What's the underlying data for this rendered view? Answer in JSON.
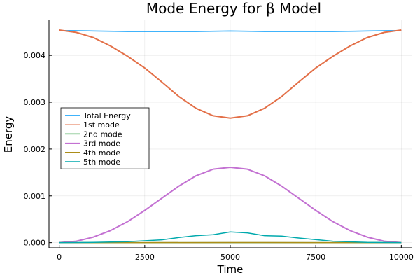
{
  "chart_data": {
    "type": "line",
    "title": "Mode Energy for β Model",
    "xlabel": "Time",
    "ylabel": "Energy",
    "xlim": [
      -300,
      10300
    ],
    "ylim": [
      -0.00011,
      0.00475
    ],
    "xticks": [
      0,
      2500,
      5000,
      7500,
      10000
    ],
    "xtick_labels": [
      "0",
      "2500",
      "5000",
      "7500",
      "10000"
    ],
    "yticks": [
      0,
      0.001,
      0.002,
      0.003,
      0.004
    ],
    "ytick_labels": [
      "0.000",
      "0.001",
      "0.002",
      "0.003",
      "0.004"
    ],
    "grid": true,
    "legend_position": "left-center",
    "series": [
      {
        "name": "Total Energy",
        "color": "#009AFA",
        "x": [
          0,
          1000,
          2000,
          3000,
          4000,
          5000,
          6000,
          7000,
          8000,
          9000,
          10000
        ],
        "y": [
          0.00453,
          0.00452,
          0.00451,
          0.00451,
          0.00451,
          0.00452,
          0.00451,
          0.00451,
          0.00451,
          0.00452,
          0.00453
        ]
      },
      {
        "name": "1st mode",
        "color": "#E36F47",
        "x": [
          0,
          500,
          1000,
          1500,
          2000,
          2500,
          3000,
          3500,
          4000,
          4500,
          5000,
          5500,
          6000,
          6500,
          7000,
          7500,
          8000,
          8500,
          9000,
          9500,
          10000
        ],
        "y": [
          0.00454,
          0.00449,
          0.00438,
          0.0042,
          0.00398,
          0.00373,
          0.00343,
          0.00312,
          0.00287,
          0.00271,
          0.00266,
          0.00271,
          0.00287,
          0.00312,
          0.00343,
          0.00373,
          0.00398,
          0.0042,
          0.00438,
          0.00449,
          0.00454
        ]
      },
      {
        "name": "2nd mode",
        "color": "#3EA44E",
        "x": [
          0,
          2500,
          5000,
          7500,
          10000
        ],
        "y": [
          0.0,
          0.0,
          1e-06,
          0.0,
          0.0
        ]
      },
      {
        "name": "3rd mode",
        "color": "#C371D2",
        "x": [
          0,
          500,
          1000,
          1500,
          2000,
          2500,
          3000,
          3500,
          4000,
          4500,
          5000,
          5500,
          6000,
          6500,
          7000,
          7500,
          8000,
          8500,
          9000,
          9500,
          10000
        ],
        "y": [
          0.0,
          3e-05,
          0.00012,
          0.00026,
          0.00045,
          0.00069,
          0.00095,
          0.00121,
          0.00143,
          0.00157,
          0.00161,
          0.00157,
          0.00143,
          0.00121,
          0.00095,
          0.00069,
          0.00045,
          0.00026,
          0.00012,
          3e-05,
          0.0
        ]
      },
      {
        "name": "4th mode",
        "color": "#AC8D18",
        "x": [
          0,
          2500,
          5000,
          7500,
          10000
        ],
        "y": [
          0.0,
          0.0,
          3e-06,
          0.0,
          0.0
        ]
      },
      {
        "name": "5th mode",
        "color": "#00A9AD",
        "x": [
          0,
          1000,
          2000,
          3000,
          3500,
          4000,
          4500,
          5000,
          5500,
          6000,
          6500,
          7000,
          8000,
          9000,
          10000
        ],
        "y": [
          0.0,
          5e-06,
          2e-05,
          6e-05,
          0.00011,
          0.00015,
          0.00017,
          0.00023,
          0.00021,
          0.00015,
          0.00014,
          0.0001,
          3e-05,
          5e-06,
          0.0
        ]
      }
    ]
  }
}
